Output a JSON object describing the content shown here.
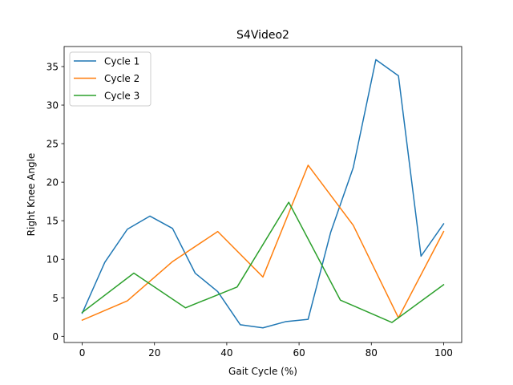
{
  "chart_data": {
    "type": "line",
    "title": "S4Video2",
    "xlabel": "Gait Cycle (%)",
    "ylabel": "Right Knee Angle",
    "xlim": [
      -5,
      105
    ],
    "ylim": [
      -0.8,
      37.6
    ],
    "xticks": [
      0,
      20,
      40,
      60,
      80,
      100
    ],
    "yticks": [
      0,
      5,
      10,
      15,
      20,
      25,
      30,
      35
    ],
    "grid": false,
    "legend_position": "top-left",
    "series": [
      {
        "name": "Cycle 1",
        "color": "#1f77b4",
        "x": [
          0,
          6.25,
          12.5,
          18.75,
          25,
          31.25,
          37.5,
          43.75,
          50,
          56.25,
          62.5,
          68.75,
          75,
          81.25,
          87.5,
          93.75,
          100
        ],
        "y": [
          3.0,
          9.6,
          13.9,
          15.6,
          14.0,
          8.2,
          5.8,
          1.5,
          1.1,
          1.9,
          2.2,
          13.5,
          21.9,
          35.9,
          33.8,
          10.4,
          14.6
        ]
      },
      {
        "name": "Cycle 2",
        "color": "#ff7f0e",
        "x": [
          0,
          12.5,
          25,
          37.5,
          50,
          62.5,
          75,
          87.5,
          100
        ],
        "y": [
          2.1,
          4.6,
          9.7,
          13.6,
          7.7,
          22.2,
          14.4,
          2.4,
          13.6
        ]
      },
      {
        "name": "Cycle 3",
        "color": "#2ca02c",
        "x": [
          0,
          14.29,
          28.57,
          42.86,
          57.14,
          71.43,
          85.71,
          100
        ],
        "y": [
          3.1,
          8.2,
          3.7,
          6.4,
          17.4,
          4.7,
          1.8,
          6.7
        ]
      }
    ]
  }
}
